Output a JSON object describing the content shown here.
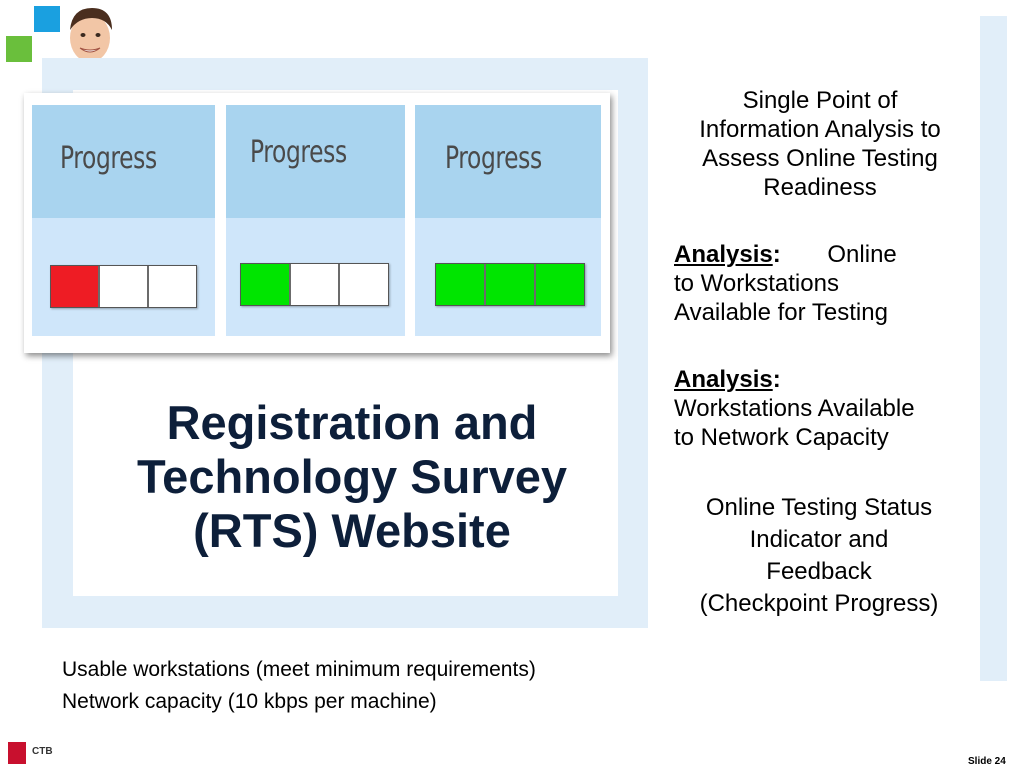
{
  "progress_cards": [
    {
      "label": "Progress",
      "segments": [
        "#ee1c24",
        "#ffffff",
        "#ffffff"
      ]
    },
    {
      "label": "Progress",
      "segments": [
        "#00e500",
        "#ffffff",
        "#ffffff"
      ]
    },
    {
      "label": "Progress",
      "segments": [
        "#00e500",
        "#00e500",
        "#00e500"
      ]
    }
  ],
  "title": {
    "line1": "Registration and",
    "line2": "Technology Survey",
    "line3": "(RTS) Website"
  },
  "right": {
    "single_point": [
      "Single Point of",
      "Information Analysis to",
      "Assess Online Testing",
      "Readiness"
    ],
    "analysis1_label": "Analysis",
    "analysis1_colon": ":",
    "analysis1_word1": "Online",
    "analysis1_line2": "to Workstations",
    "analysis1_line3": "Available for Testing",
    "analysis2_label": "Analysis",
    "analysis2_colon": ":",
    "analysis2_line2": "Workstations Available",
    "analysis2_line3": "to Network Capacity",
    "status": [
      "Online Testing Status",
      "Indicator and",
      "Feedback",
      "(Checkpoint Progress)"
    ]
  },
  "notes": [
    "Usable workstations (meet minimum requirements)",
    "Network capacity (10 kbps per machine)"
  ],
  "footer": {
    "brand": "CTB",
    "slide": "Slide 24"
  },
  "colors": {
    "frame": "#e1eef9",
    "title": "#0d1f3a",
    "logo_blue": "#1aa0e0",
    "logo_green": "#6abf3c",
    "brand_red": "#c8102e"
  }
}
